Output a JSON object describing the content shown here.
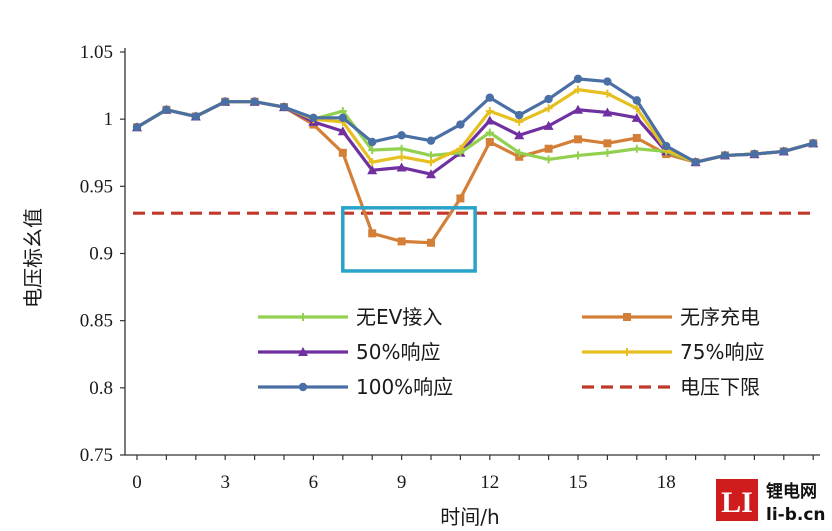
{
  "chart_data": {
    "type": "line",
    "xlabel": "时间/h",
    "ylabel": "电压标幺值",
    "xlim": [
      0,
      24
    ],
    "ylim": [
      0.75,
      1.05
    ],
    "x_ticks": [
      0,
      3,
      6,
      9,
      12,
      15,
      18
    ],
    "y_ticks": [
      "0.75",
      "0.8",
      "0.85",
      "0.9",
      "0.95",
      "1",
      "1.05"
    ],
    "x": [
      0,
      1,
      2,
      3,
      4,
      5,
      6,
      7,
      8,
      9,
      10,
      11,
      12,
      13,
      14,
      15,
      16,
      17,
      18,
      19,
      20,
      21,
      22,
      23
    ],
    "series": [
      {
        "name": "无EV接入",
        "color": "#92d050",
        "marker": "plus",
        "values": [
          0.994,
          1.007,
          1.002,
          1.013,
          1.013,
          1.009,
          1.0,
          1.006,
          0.977,
          0.978,
          0.973,
          0.975,
          0.99,
          0.975,
          0.97,
          0.973,
          0.975,
          0.978,
          0.976,
          0.968,
          0.973,
          0.974,
          0.976,
          0.982
        ]
      },
      {
        "name": "无序充电",
        "color": "#d47f38",
        "marker": "square",
        "values": [
          0.994,
          1.007,
          1.002,
          1.013,
          1.013,
          1.009,
          0.996,
          0.975,
          0.915,
          0.909,
          0.908,
          0.941,
          0.983,
          0.972,
          0.978,
          0.985,
          0.982,
          0.986,
          0.974,
          0.968,
          0.973,
          0.974,
          0.976,
          0.982
        ]
      },
      {
        "name": "50%响应",
        "color": "#7030a0",
        "marker": "triangle",
        "values": [
          0.994,
          1.007,
          1.002,
          1.013,
          1.013,
          1.009,
          0.998,
          0.991,
          0.962,
          0.964,
          0.959,
          0.975,
          0.999,
          0.988,
          0.995,
          1.007,
          1.005,
          1.001,
          0.976,
          0.968,
          0.973,
          0.974,
          0.976,
          0.982
        ]
      },
      {
        "name": "75%响应",
        "color": "#e6c020",
        "marker": "plus",
        "values": [
          0.994,
          1.007,
          1.002,
          1.013,
          1.013,
          1.009,
          1.0,
          0.998,
          0.968,
          0.972,
          0.968,
          0.978,
          1.006,
          0.998,
          1.008,
          1.022,
          1.019,
          1.008,
          0.977,
          0.968,
          0.973,
          0.974,
          0.976,
          0.982
        ]
      },
      {
        "name": "100%响应",
        "color": "#4a6fa5",
        "marker": "circle",
        "values": [
          0.994,
          1.007,
          1.002,
          1.013,
          1.013,
          1.009,
          1.001,
          1.001,
          0.983,
          0.988,
          0.984,
          0.996,
          1.016,
          1.003,
          1.015,
          1.03,
          1.028,
          1.014,
          0.98,
          0.968,
          0.973,
          0.974,
          0.976,
          0.982
        ]
      }
    ],
    "reference_lines": [
      {
        "name": "电压下限",
        "y": 0.93,
        "color": "#c0392b",
        "style": "dashed"
      }
    ],
    "annotations": [
      {
        "type": "box",
        "x": [
          7,
          11.5
        ],
        "y": [
          0.887,
          0.934
        ],
        "color": "#29a3c9"
      }
    ],
    "grid": false,
    "legend": {
      "placement": "bottom-center",
      "columns": 2
    }
  },
  "watermark": {
    "logo_text": "LI",
    "line1": "锂电网",
    "line2": "li-b.cn",
    "color": "#d01c1c"
  }
}
